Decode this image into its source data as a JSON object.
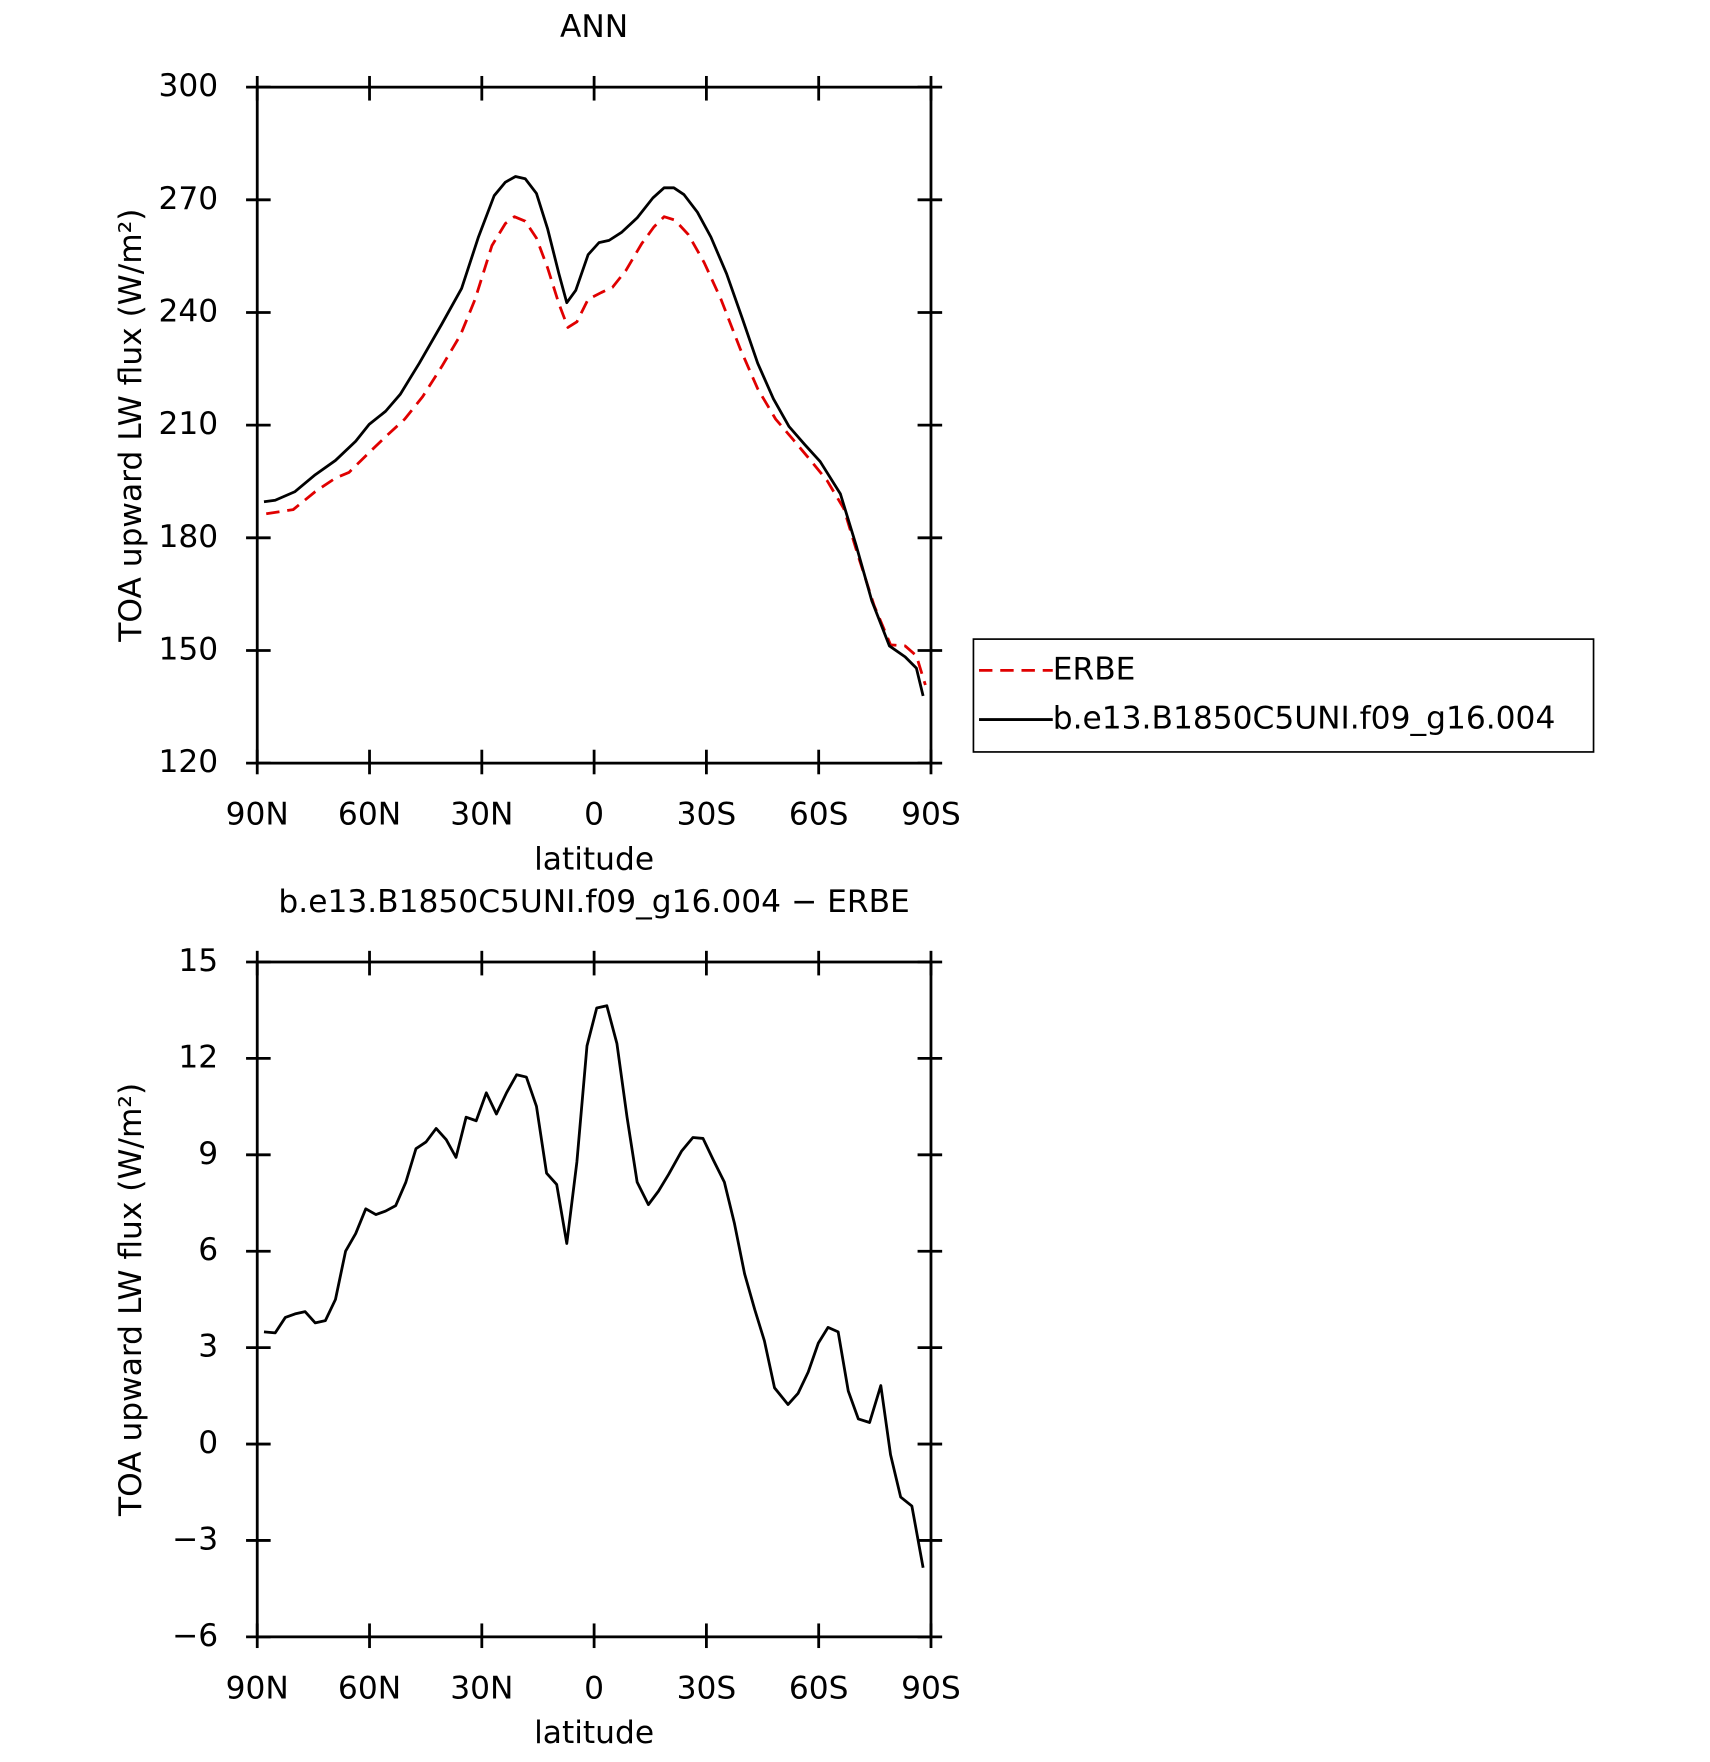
{
  "chart_data": [
    {
      "type": "line",
      "title": "ANN",
      "xlabel": "latitude",
      "ylabel": "TOA upward LW flux (W/m²)",
      "xlim": [
        90,
        -90
      ],
      "xticks": [
        {
          "value": 90,
          "label": "90N"
        },
        {
          "value": 60,
          "label": "60N"
        },
        {
          "value": 30,
          "label": "30N"
        },
        0,
        {
          "value": -30,
          "label": "30S"
        },
        {
          "value": -60,
          "label": "60S"
        },
        {
          "value": -90,
          "label": "90S"
        }
      ],
      "ylim": [
        120,
        300
      ],
      "yticks": [
        120,
        150,
        180,
        210,
        240,
        270,
        300
      ],
      "legend": "right",
      "series": [
        {
          "name": "ERBE",
          "color": "#e00000",
          "line_style": "dashed",
          "x": [
            87.6,
            80.4,
            74.5,
            69.1,
            65.5,
            60.1,
            55.4,
            50.6,
            45.8,
            40.7,
            35.7,
            31.8,
            27.3,
            23.7,
            21.3,
            18.4,
            15.4,
            12.4,
            9.4,
            7.0,
            4.6,
            1.6,
            -1.9,
            -4.9,
            -8.5,
            -12.7,
            -16.0,
            -18.7,
            -21.6,
            -25.2,
            -29.4,
            -33.9,
            -39.0,
            -43.7,
            -48.5,
            -53.3,
            -58.1,
            -62.2,
            -66.7,
            -70.6,
            -74.8,
            -79.2,
            -83.1,
            -86.1,
            -88.5
          ],
          "values": [
            186.4,
            187.5,
            192.3,
            195.9,
            197.4,
            202.7,
            207.2,
            211.6,
            217.6,
            225.6,
            234.0,
            243.5,
            257.8,
            263.7,
            265.5,
            264.3,
            259.8,
            251.8,
            242.3,
            236.0,
            237.5,
            243.5,
            245.3,
            246.7,
            251.2,
            258.3,
            262.8,
            265.5,
            264.6,
            260.7,
            253.3,
            243.5,
            230.4,
            219.7,
            211.6,
            206.0,
            200.3,
            195.3,
            187.8,
            175.0,
            162.0,
            151.5,
            151.2,
            148.6,
            140.8
          ]
        },
        {
          "name": "b.e13.B1850C5UNI.f09_g16.004",
          "color": "#000000",
          "line_style": "solid",
          "x": [
            88.2,
            85.2,
            79.9,
            74.5,
            69.1,
            63.7,
            60.1,
            55.7,
            51.8,
            46.7,
            40.7,
            35.4,
            30.9,
            26.7,
            23.7,
            21.0,
            18.4,
            15.4,
            12.4,
            9.4,
            7.3,
            4.9,
            1.6,
            -1.3,
            -4.0,
            -7.3,
            -11.5,
            -15.7,
            -18.7,
            -21.3,
            -24.0,
            -27.6,
            -31.2,
            -35.4,
            -39.6,
            -43.7,
            -47.9,
            -52.1,
            -56.3,
            -60.4,
            -65.8,
            -70.0,
            -74.2,
            -78.9,
            -83.1,
            -86.1,
            -87.9
          ],
          "values": [
            189.6,
            190.0,
            192.3,
            196.8,
            200.6,
            205.7,
            210.2,
            213.7,
            218.2,
            226.5,
            236.9,
            246.4,
            260.1,
            271.1,
            274.7,
            276.2,
            275.6,
            271.7,
            262.2,
            250.3,
            242.6,
            245.9,
            255.4,
            258.6,
            259.2,
            261.3,
            265.2,
            270.5,
            273.2,
            273.2,
            271.4,
            266.7,
            260.1,
            250.3,
            238.4,
            226.5,
            217.0,
            209.6,
            204.8,
            200.3,
            191.7,
            178.0,
            163.2,
            151.2,
            148.3,
            145.3,
            137.9
          ]
        }
      ]
    },
    {
      "type": "line",
      "title": "b.e13.B1850C5UNI.f09_g16.004 − ERBE",
      "xlabel": "latitude",
      "ylabel": "TOA upward LW flux (W/m²)",
      "xlim": [
        90,
        -90
      ],
      "xticks": [
        {
          "value": 90,
          "label": "90N"
        },
        {
          "value": 60,
          "label": "60N"
        },
        {
          "value": 30,
          "label": "30N"
        },
        0,
        {
          "value": -30,
          "label": "30S"
        },
        {
          "value": -60,
          "label": "60S"
        },
        {
          "value": -90,
          "label": "90S"
        }
      ],
      "ylim": [
        -6,
        15
      ],
      "yticks": [
        {
          "value": -6,
          "label": "−6"
        },
        {
          "value": -3,
          "label": "−3"
        },
        0,
        3,
        6,
        9,
        12,
        15
      ],
      "series": [
        {
          "color": "#000000",
          "line_style": "solid",
          "x": [
            88.2,
            85.2,
            82.5,
            79.9,
            77.2,
            74.5,
            71.8,
            69.1,
            66.4,
            63.7,
            61.0,
            58.3,
            55.7,
            53.0,
            50.3,
            47.6,
            44.9,
            42.2,
            39.5,
            36.9,
            34.2,
            31.5,
            28.8,
            26.1,
            23.4,
            20.7,
            18.1,
            15.4,
            12.7,
            10.0,
            7.3,
            4.6,
            1.9,
            -0.7,
            -3.4,
            -6.1,
            -8.8,
            -11.5,
            -14.5,
            -17.2,
            -19.9,
            -23.4,
            -26.4,
            -29.1,
            -31.8,
            -34.8,
            -37.5,
            -40.2,
            -42.9,
            -45.5,
            -48.2,
            -51.8,
            -54.5,
            -57.2,
            -59.9,
            -62.5,
            -65.2,
            -67.9,
            -70.6,
            -73.6,
            -76.6,
            -79.2,
            -81.9,
            -84.9,
            -87.9
          ],
          "values": [
            3.49,
            3.46,
            3.94,
            4.05,
            4.12,
            3.77,
            3.84,
            4.5,
            6.0,
            6.55,
            7.32,
            7.14,
            7.25,
            7.42,
            8.15,
            9.19,
            9.4,
            9.82,
            9.47,
            8.92,
            10.17,
            10.06,
            10.93,
            10.27,
            10.93,
            11.49,
            11.42,
            10.51,
            8.43,
            8.08,
            6.24,
            8.78,
            12.39,
            13.57,
            13.64,
            12.46,
            10.17,
            8.15,
            7.45,
            7.87,
            8.39,
            9.12,
            9.54,
            9.51,
            8.85,
            8.15,
            6.86,
            5.3,
            4.19,
            3.21,
            1.75,
            1.23,
            1.58,
            2.24,
            3.14,
            3.63,
            3.49,
            1.65,
            0.78,
            0.67,
            1.82,
            -0.33,
            -1.65,
            -1.93,
            -3.85
          ]
        }
      ]
    }
  ]
}
